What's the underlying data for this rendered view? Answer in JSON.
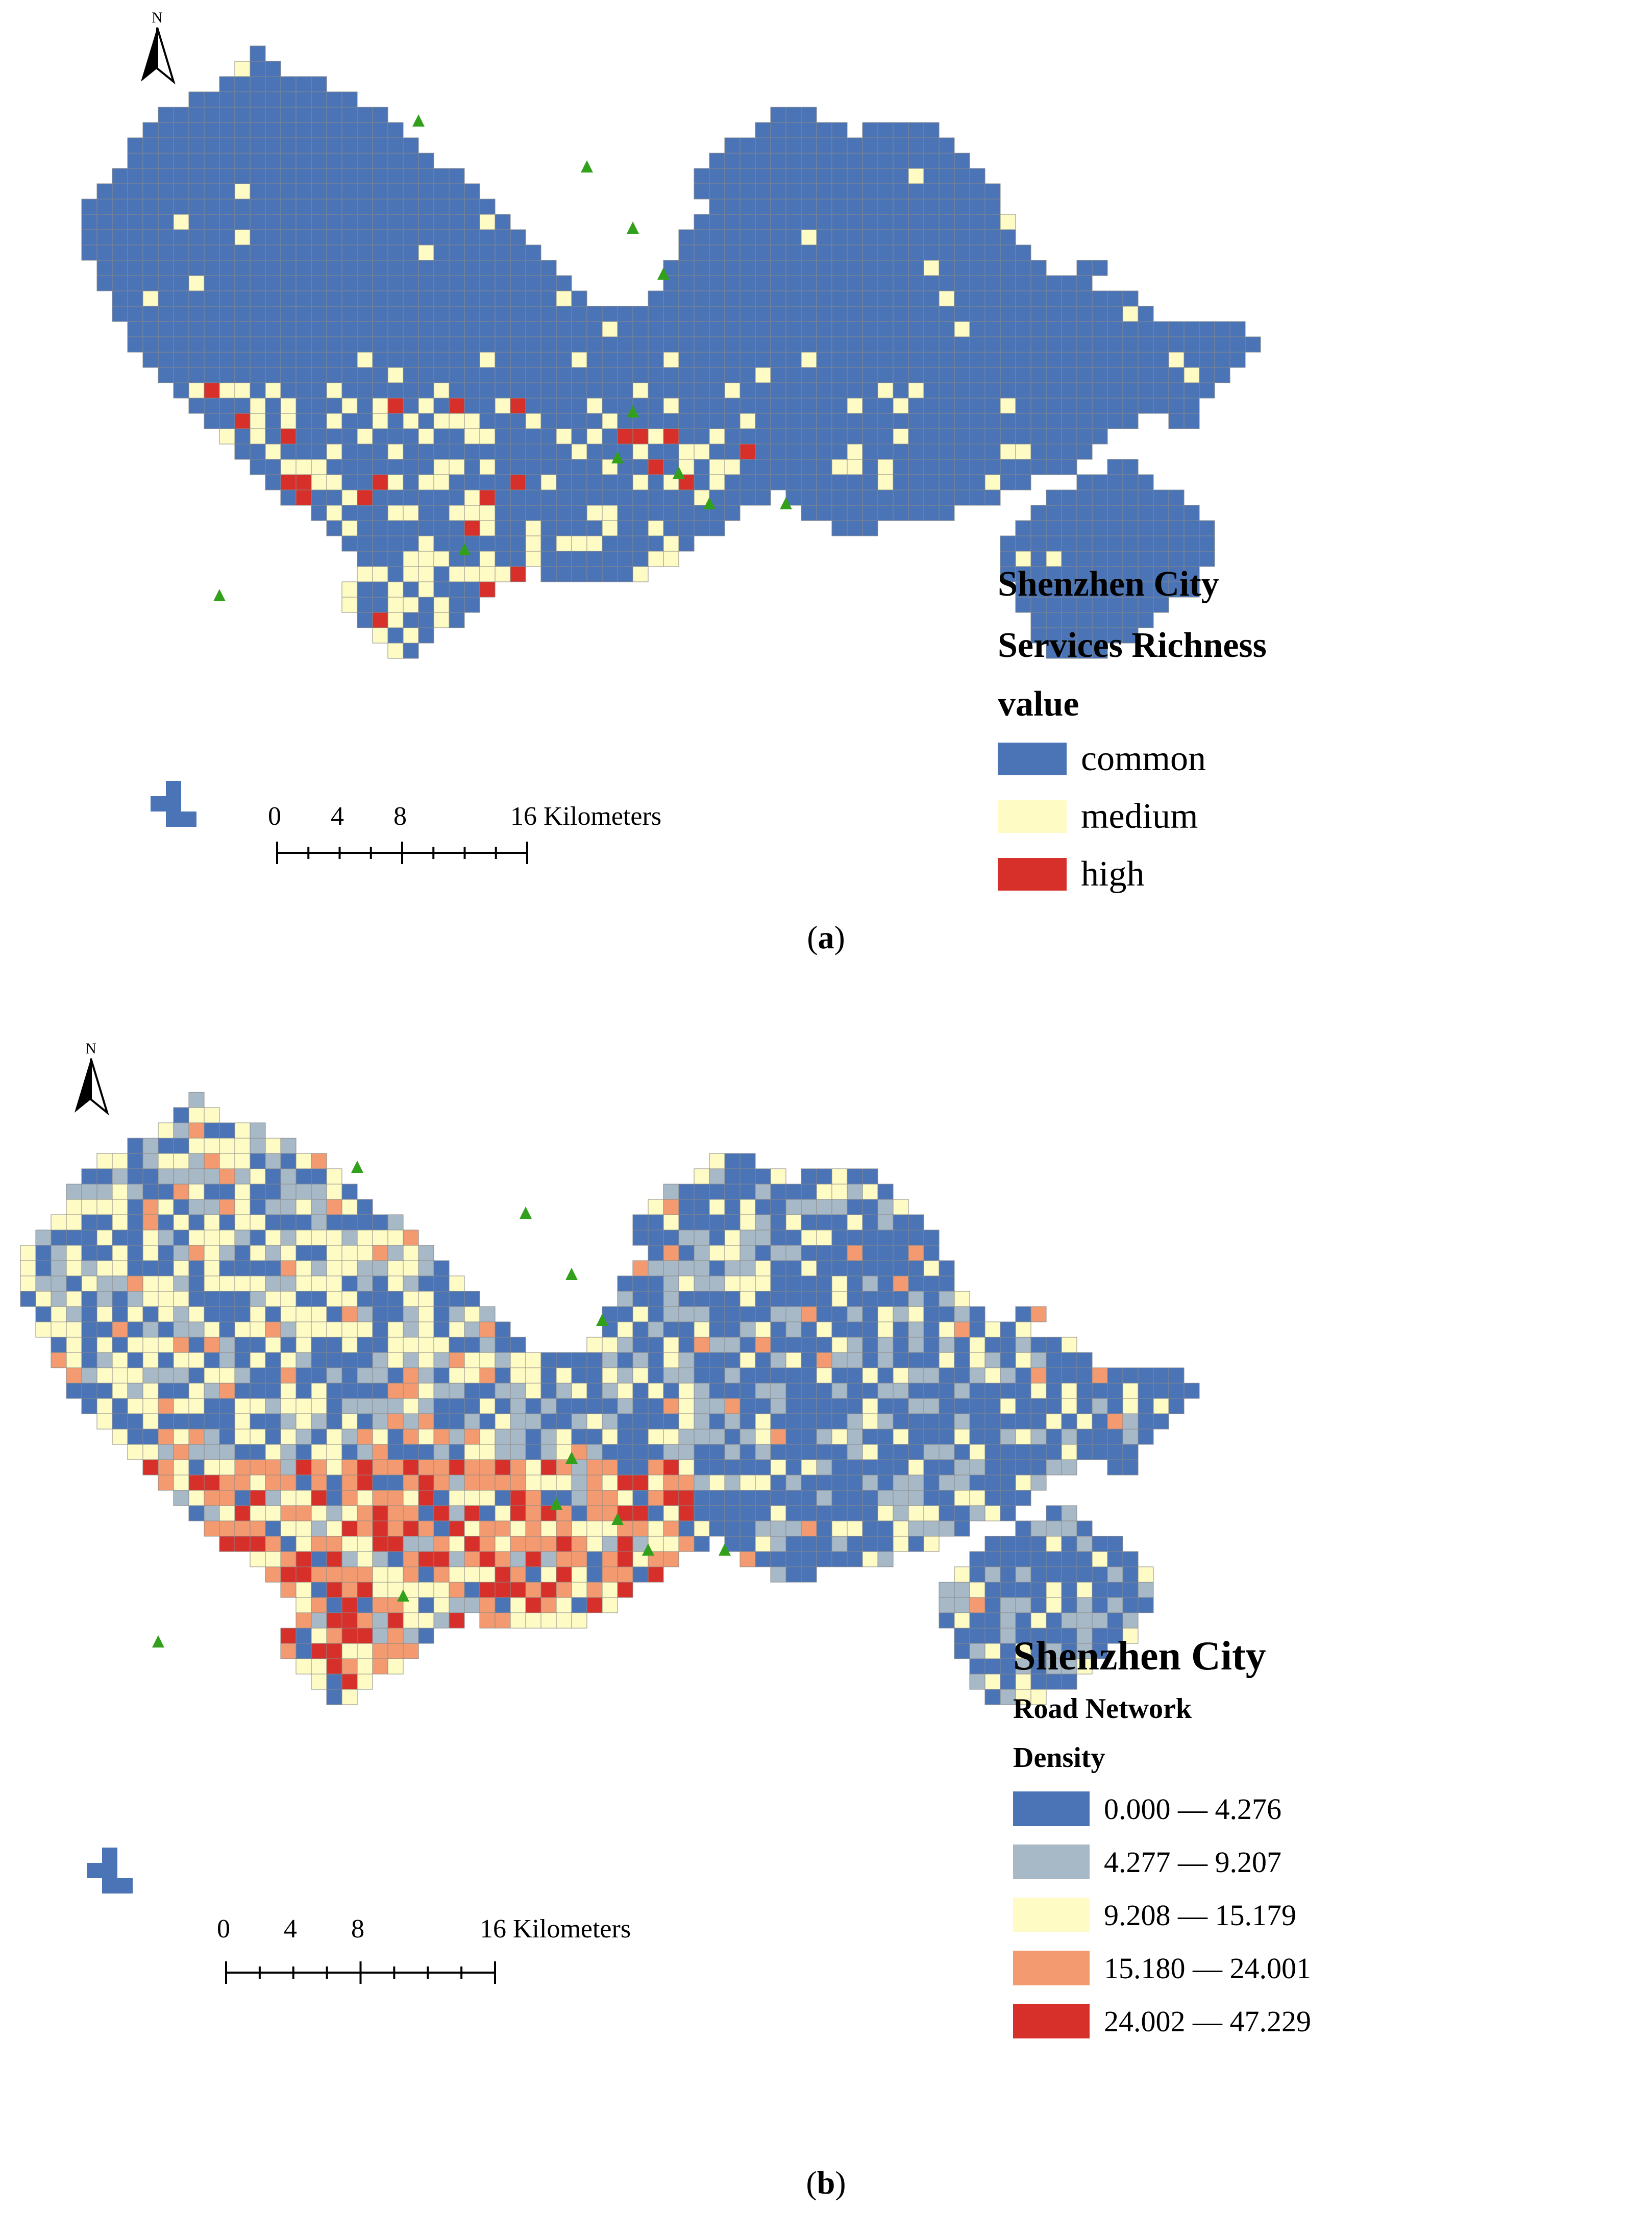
{
  "colors": {
    "common": "#4a74b5",
    "medium": "#fefcc4",
    "high": "#d7302b",
    "class1": "#4a74b5",
    "class2": "#a7b8c6",
    "class3": "#fefcc4",
    "class4": "#f39a70",
    "class5": "#d7302b",
    "cell_border": "#8a8a8a",
    "marker": "#33a01c"
  },
  "panel_a": {
    "north_label": "N",
    "legend": {
      "title_lines": [
        "Shenzhen City",
        "Services Richness",
        "value"
      ],
      "items": [
        {
          "label": "common",
          "color_key": "common"
        },
        {
          "label": "medium",
          "color_key": "medium"
        },
        {
          "label": "high",
          "color_key": "high"
        }
      ]
    },
    "scale_bar": {
      "ticks": [
        "0",
        "4",
        "8",
        "16 Kilometers"
      ]
    },
    "caption": "a"
  },
  "panel_b": {
    "north_label": "N",
    "legend": {
      "title_lines": [
        "Shenzhen City",
        "Road Network",
        "Density"
      ],
      "items": [
        {
          "label": "0.000 — 4.276",
          "color_key": "class1"
        },
        {
          "label": "4.277 — 9.207",
          "color_key": "class2"
        },
        {
          "label": "9.208 — 15.179",
          "color_key": "class3"
        },
        {
          "label": "15.180 — 24.001",
          "color_key": "class4"
        },
        {
          "label": "24.002 — 47.229",
          "color_key": "class5"
        }
      ]
    },
    "scale_bar": {
      "ticks": [
        "0",
        "4",
        "8",
        "16 Kilometers"
      ]
    },
    "caption": "b"
  }
}
